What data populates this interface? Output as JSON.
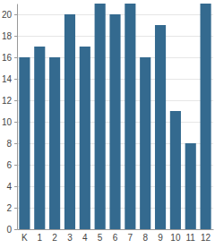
{
  "chart_data": {
    "type": "bar",
    "categories": [
      "K",
      "1",
      "2",
      "3",
      "4",
      "5",
      "6",
      "7",
      "8",
      "9",
      "10",
      "11",
      "12"
    ],
    "values": [
      16,
      17,
      16,
      20,
      17,
      21,
      20,
      21,
      16,
      19,
      11,
      8,
      21
    ],
    "color": "#346a8f",
    "ylim": [
      0,
      21
    ],
    "yticks": [
      0,
      2,
      4,
      6,
      8,
      10,
      12,
      14,
      16,
      18,
      20
    ],
    "grid": true
  }
}
